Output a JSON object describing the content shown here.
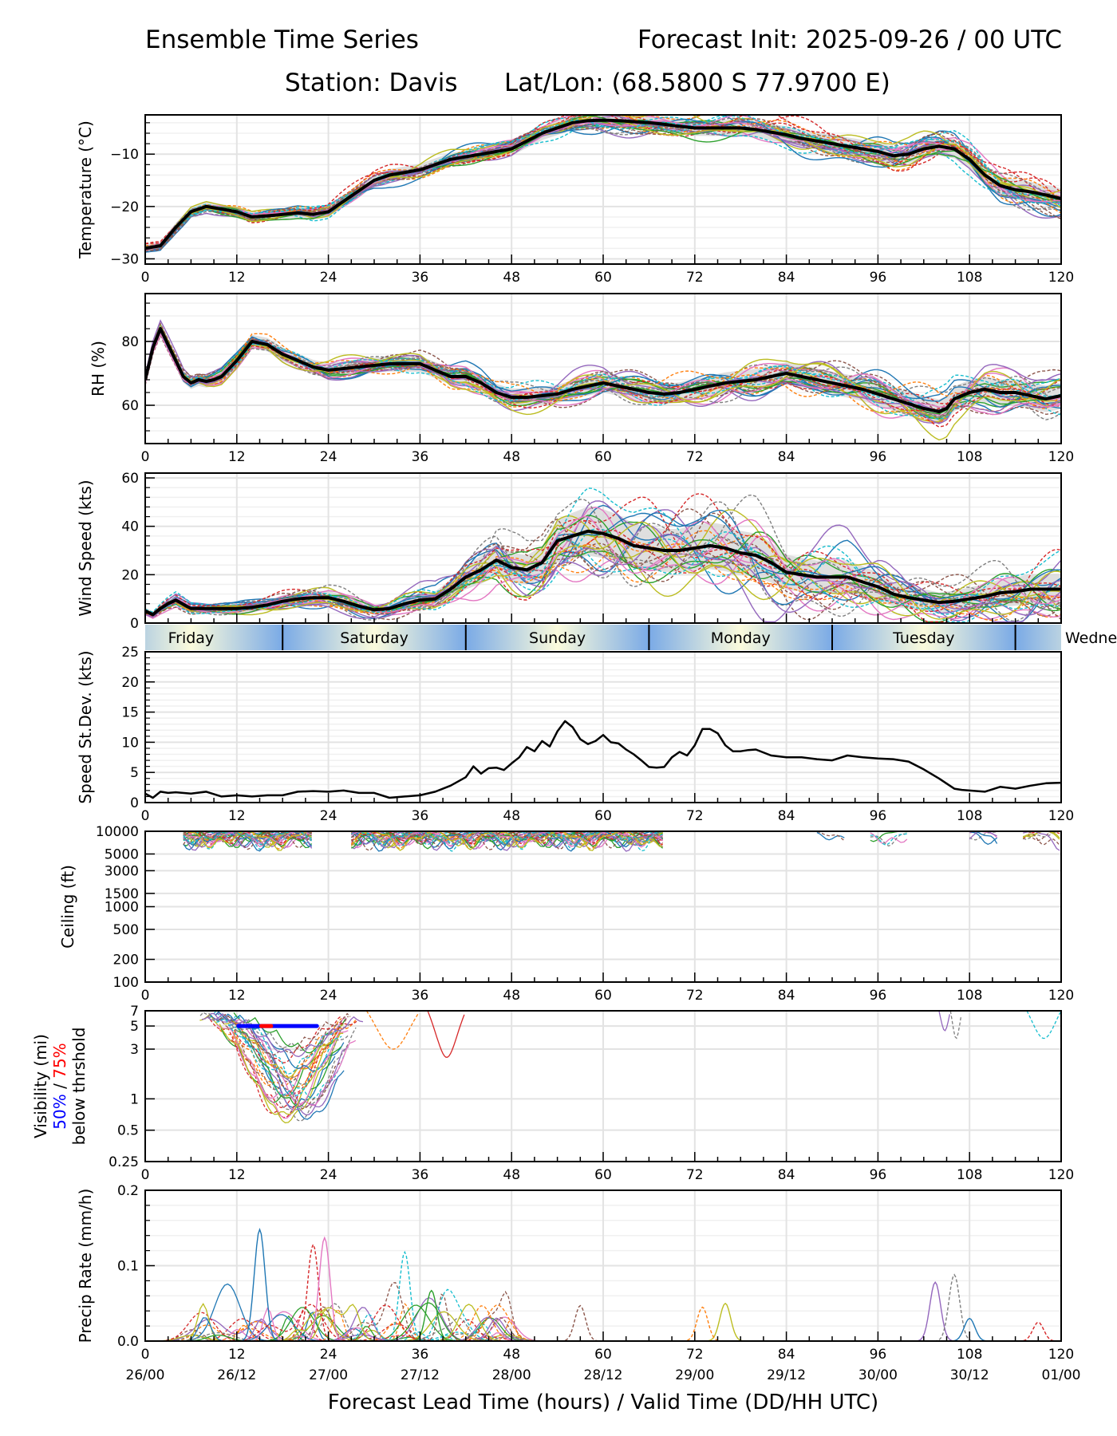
{
  "header": {
    "title_left": "Ensemble Time Series",
    "title_right": "Forecast Init: 2025-09-26 / 00 UTC",
    "station": "Station: Davis",
    "latlon": "Lat/Lon: (68.5800 S 77.9700 E)"
  },
  "xaxis": {
    "lead_ticks": [
      0,
      12,
      24,
      36,
      48,
      60,
      72,
      84,
      96,
      108,
      120
    ],
    "valid_ticks": [
      "26/00",
      "26/12",
      "27/00",
      "27/12",
      "28/00",
      "28/12",
      "29/00",
      "29/12",
      "30/00",
      "30/12",
      "01/00"
    ],
    "label": "Forecast Lead Time (hours) / Valid Time (DD/HH UTC)",
    "range": [
      0,
      120
    ]
  },
  "day_band": {
    "days": [
      {
        "label": "Friday",
        "start": -6,
        "end": 18
      },
      {
        "label": "Saturday",
        "start": 18,
        "end": 42
      },
      {
        "label": "Sunday",
        "start": 42,
        "end": 66
      },
      {
        "label": "Monday",
        "start": 66,
        "end": 90
      },
      {
        "label": "Tuesday",
        "start": 90,
        "end": 114
      },
      {
        "label": "Wednesday",
        "start": 114,
        "end": 138
      }
    ],
    "colors": {
      "edge": "#7aaae6",
      "center": "#fbfbdc"
    }
  },
  "colors": {
    "mean": "#000000",
    "spread": "#d9d9d9",
    "members": [
      "#1f77b4",
      "#ff7f0e",
      "#2ca02c",
      "#d62728",
      "#9467bd",
      "#8c564b",
      "#e377c2",
      "#7f7f7f",
      "#bcbd22",
      "#17becf"
    ],
    "vis50": "#0000ff",
    "vis75": "#ff0000"
  },
  "chart_data": [
    {
      "type": "line",
      "id": "temperature",
      "ylabel": "Temperature (°C)",
      "ylim": [
        -31,
        -2.5
      ],
      "yticks": [
        -30,
        -20,
        -10
      ],
      "grid": true,
      "x": [
        0,
        2,
        4,
        6,
        8,
        10,
        12,
        14,
        16,
        18,
        20,
        22,
        24,
        26,
        28,
        30,
        32,
        34,
        36,
        38,
        40,
        42,
        44,
        46,
        48,
        50,
        52,
        54,
        56,
        58,
        60,
        62,
        64,
        66,
        68,
        70,
        72,
        74,
        76,
        78,
        80,
        82,
        84,
        86,
        88,
        90,
        92,
        94,
        96,
        98,
        100,
        102,
        104,
        106,
        108,
        110,
        112,
        114,
        116,
        118,
        120
      ],
      "mean": [
        -28,
        -27.5,
        -24,
        -21,
        -20,
        -20.5,
        -21,
        -22,
        -21.8,
        -21.5,
        -21.2,
        -21.5,
        -21,
        -19,
        -17,
        -15,
        -14,
        -13.5,
        -13,
        -12,
        -11,
        -10.5,
        -10,
        -9.5,
        -9,
        -7.5,
        -6,
        -5,
        -4,
        -3.6,
        -3.5,
        -3.6,
        -3.8,
        -4,
        -4.3,
        -4.7,
        -5,
        -5,
        -5,
        -5,
        -5.3,
        -5.8,
        -6.3,
        -7,
        -7.5,
        -8,
        -8.5,
        -9,
        -9.5,
        -10.3,
        -10,
        -9,
        -8.5,
        -9,
        -11,
        -14,
        -16,
        -16.8,
        -17.2,
        -17.8,
        -18.5
      ],
      "spread": 1.4,
      "member_count": 30
    },
    {
      "type": "line",
      "id": "rh",
      "ylabel": "RH (%)",
      "ylim": [
        48,
        95
      ],
      "yticks": [
        60,
        80
      ],
      "grid": true,
      "x": [
        0,
        1,
        2,
        3,
        4,
        5,
        6,
        7,
        8,
        9,
        10,
        12,
        14,
        16,
        18,
        20,
        22,
        24,
        26,
        28,
        30,
        32,
        34,
        36,
        38,
        40,
        42,
        44,
        46,
        48,
        50,
        52,
        54,
        56,
        58,
        60,
        62,
        64,
        66,
        68,
        70,
        72,
        74,
        76,
        78,
        80,
        82,
        84,
        86,
        88,
        90,
        92,
        94,
        96,
        98,
        100,
        102,
        104,
        105,
        106,
        108,
        110,
        112,
        114,
        116,
        118,
        120
      ],
      "mean": [
        68,
        78,
        84,
        79,
        74,
        69,
        67,
        68,
        67.5,
        68,
        69,
        74,
        80,
        79,
        76,
        74,
        72,
        71,
        71.5,
        72,
        72.5,
        73,
        73,
        73,
        71,
        69,
        69,
        67,
        64,
        62.5,
        62.5,
        63,
        63.5,
        65,
        66,
        67,
        66,
        65,
        64,
        63.5,
        64,
        65,
        66,
        67,
        67.5,
        68,
        69,
        70,
        69,
        68,
        67,
        66,
        65,
        63.5,
        62,
        60.5,
        59,
        58,
        59,
        62,
        64,
        65,
        64,
        64,
        63,
        62,
        63
      ],
      "spread": 3,
      "member_count": 30
    },
    {
      "type": "line",
      "id": "wind_speed",
      "ylabel": "Wind Speed (kts)",
      "ylim": [
        0,
        62
      ],
      "yticks": [
        0,
        20,
        40,
        60
      ],
      "grid": true,
      "x": [
        0,
        1,
        2,
        3,
        4,
        6,
        8,
        10,
        12,
        14,
        16,
        18,
        20,
        22,
        24,
        26,
        28,
        30,
        32,
        34,
        36,
        38,
        40,
        42,
        44,
        46,
        48,
        50,
        52,
        54,
        56,
        58,
        60,
        62,
        64,
        66,
        68,
        70,
        72,
        74,
        76,
        78,
        80,
        82,
        84,
        86,
        88,
        90,
        92,
        94,
        96,
        98,
        100,
        102,
        104,
        106,
        108,
        110,
        112,
        114,
        116,
        118,
        120
      ],
      "mean": [
        5,
        3.5,
        6,
        8,
        9.5,
        6,
        6,
        6,
        6,
        6.5,
        7.5,
        9,
        10,
        10.5,
        10.5,
        9,
        7,
        5.5,
        6,
        8,
        9.5,
        10,
        14,
        19,
        22,
        26,
        23,
        22,
        25,
        34,
        36,
        38,
        37,
        35,
        32,
        31,
        30,
        30,
        31,
        32,
        31,
        29,
        28,
        25,
        21,
        20,
        19,
        19,
        19,
        17,
        15,
        12,
        10.5,
        9.5,
        8.5,
        9,
        10,
        11,
        12.5,
        13,
        14,
        14,
        14
      ],
      "spread": 6,
      "member_count": 30
    },
    {
      "type": "line",
      "id": "speed_stdev",
      "ylabel": "Speed St.Dev. (kts)",
      "ylim": [
        0,
        25
      ],
      "yticks": [
        0,
        5,
        10,
        15,
        20,
        25
      ],
      "grid": true,
      "x": [
        0,
        1,
        2,
        3,
        4,
        6,
        8,
        10,
        12,
        14,
        16,
        18,
        20,
        22,
        24,
        26,
        28,
        30,
        32,
        34,
        36,
        38,
        40,
        42,
        43,
        44,
        45,
        46,
        47,
        48,
        49,
        50,
        51,
        52,
        53,
        54,
        55,
        56,
        57,
        58,
        59,
        60,
        61,
        62,
        63,
        64,
        65,
        66,
        67,
        68,
        69,
        70,
        71,
        72,
        73,
        74,
        75,
        76,
        77,
        78,
        79,
        80,
        82,
        84,
        86,
        88,
        90,
        92,
        94,
        96,
        98,
        100,
        102,
        104,
        106,
        107,
        108,
        110,
        112,
        114,
        116,
        118,
        120
      ],
      "values": [
        1.5,
        0.8,
        1.8,
        1.6,
        1.7,
        1.5,
        1.8,
        1,
        1.2,
        1,
        1.2,
        1.2,
        1.8,
        1.9,
        1.8,
        2,
        1.6,
        1.6,
        0.8,
        1,
        1.2,
        1.8,
        2.8,
        4.2,
        6,
        4.8,
        5.7,
        5.8,
        5.4,
        6.5,
        7.5,
        9.2,
        8.5,
        10.2,
        9.3,
        11.8,
        13.5,
        12.5,
        10.5,
        9.7,
        10.2,
        11.2,
        10,
        9.8,
        8.8,
        8,
        7,
        5.9,
        5.8,
        5.9,
        7.5,
        8.4,
        7.8,
        9.5,
        12.2,
        12.2,
        11.5,
        9.5,
        8.5,
        8.5,
        8.7,
        8.8,
        7.8,
        7.5,
        7.5,
        7.2,
        7,
        7.8,
        7.5,
        7.3,
        7.2,
        6.8,
        5.5,
        4,
        2.3,
        2.1,
        2,
        1.8,
        2.6,
        2.3,
        2.8,
        3.2,
        3.3
      ],
      "line_color": "#000000"
    },
    {
      "type": "line",
      "id": "ceiling",
      "ylabel": "Ceiling (ft)",
      "yscale": "log",
      "ylim": [
        100,
        10000
      ],
      "yticks": [
        100,
        200,
        500,
        1000,
        1500,
        3000,
        5000,
        10000
      ],
      "ytick_labels": [
        "100",
        "200",
        "500",
        "1000",
        "1500",
        "3000",
        "5000",
        "10000"
      ],
      "grid": true,
      "notes": "Members mostly at or above 10000 ft; dips to ~5500-8000 ft between hours 5-68",
      "member_dip_windows": [
        [
          5,
          22
        ],
        [
          27,
          68
        ],
        [
          88,
          92
        ],
        [
          95,
          100
        ],
        [
          108,
          112
        ],
        [
          115,
          120
        ]
      ]
    },
    {
      "type": "line",
      "id": "visibility",
      "ylabel": "Visibility (mi)",
      "ylabel_line2_a": "50%",
      "ylabel_line2_sep": " / ",
      "ylabel_line2_b": "75%",
      "ylabel_line3": "below thrshold",
      "yscale": "log",
      "ylim": [
        0.25,
        7
      ],
      "yticks": [
        0.25,
        0.5,
        1,
        3,
        5,
        7
      ],
      "ytick_labels": [
        "0.25",
        "0.5",
        "1",
        "3",
        "5",
        "7"
      ],
      "grid": true,
      "threshold_50_bar": {
        "start": 12.2,
        "end": 22.5,
        "level": 5
      },
      "threshold_75_bar": {
        "start": 15.2,
        "end": 16.5,
        "level": 5
      },
      "notes": "Members drop to 1.5-3 mi between hours 8-27; isolated dips near 37-42, 104-106, 116-120"
    },
    {
      "type": "line",
      "id": "precip_rate",
      "ylabel": "Precip Rate (mm/h)",
      "ylim": [
        0,
        0.2
      ],
      "yticks": [
        0.0,
        0.1,
        0.2
      ],
      "ytick_labels": [
        "0.0",
        "0.1",
        "0.2"
      ],
      "grid": true,
      "peaks": [
        {
          "x": 15,
          "y": 0.148
        },
        {
          "x": 22,
          "y": 0.128
        },
        {
          "x": 23.5,
          "y": 0.137
        },
        {
          "x": 34,
          "y": 0.118
        },
        {
          "x": 37.5,
          "y": 0.067
        },
        {
          "x": 57,
          "y": 0.047
        },
        {
          "x": 76,
          "y": 0.05
        },
        {
          "x": 73,
          "y": 0.045
        },
        {
          "x": 103.5,
          "y": 0.078
        },
        {
          "x": 106,
          "y": 0.088
        },
        {
          "x": 108,
          "y": 0.03
        },
        {
          "x": 117,
          "y": 0.025
        }
      ]
    }
  ]
}
